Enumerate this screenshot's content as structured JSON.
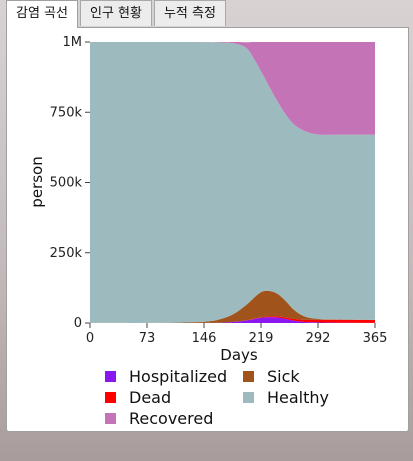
{
  "tabs": [
    {
      "label": "감염 곡선",
      "active": true
    },
    {
      "label": "인구 현황",
      "active": false
    },
    {
      "label": "누적 측정",
      "active": false
    }
  ],
  "chart_data": {
    "type": "area",
    "stacked": true,
    "xlabel": "Days",
    "ylabel": "person",
    "x_ticks": [
      0,
      73,
      146,
      219,
      292,
      365
    ],
    "y_ticks": [
      0,
      250000,
      500000,
      750000,
      1000000
    ],
    "y_tick_labels": [
      "0",
      "250k",
      "500k",
      "750k",
      "1M"
    ],
    "xlim": [
      0,
      365
    ],
    "ylim": [
      0,
      1000000
    ],
    "grid": false,
    "legend_position": "bottom",
    "x": [
      0,
      100,
      150,
      170,
      185,
      200,
      210,
      220,
      230,
      240,
      250,
      260,
      270,
      280,
      295,
      310,
      330,
      365
    ],
    "series": [
      {
        "name": "Hospitalized",
        "color": "#8a16f0",
        "values": [
          0,
          0,
          500,
          1500,
          4000,
          9000,
          14000,
          19000,
          21000,
          20000,
          15000,
          9000,
          5000,
          3000,
          2000,
          1500,
          1000,
          500
        ]
      },
      {
        "name": "Dead",
        "color": "#ff0000",
        "values": [
          0,
          0,
          0,
          0,
          0,
          200,
          1000,
          2000,
          3000,
          4000,
          5000,
          6000,
          7000,
          8000,
          9000,
          10000,
          10000,
          10000
        ]
      },
      {
        "name": "Sick",
        "color": "#a0541c",
        "values": [
          0,
          1000,
          5000,
          15000,
          30000,
          55000,
          75000,
          90000,
          90000,
          80000,
          60000,
          35000,
          18000,
          8000,
          3000,
          1500,
          1000,
          500
        ]
      },
      {
        "name": "Healthy",
        "color": "#9dbbbf",
        "values": [
          1000000,
          999000,
          994000,
          981000,
          961000,
          915000,
          850000,
          780000,
          725000,
          685000,
          665000,
          660000,
          660000,
          659000,
          656000,
          657000,
          658000,
          659000
        ]
      },
      {
        "name": "Recovered",
        "color": "#c373b6",
        "values": [
          0,
          0,
          500,
          2500,
          5000,
          20000,
          60000,
          109000,
          161000,
          211000,
          255000,
          290000,
          310000,
          322000,
          330000,
          330000,
          330000,
          330000
        ]
      }
    ],
    "legend_order": [
      "Hospitalized",
      "Sick",
      "Dead",
      "Healthy",
      "Recovered"
    ]
  }
}
